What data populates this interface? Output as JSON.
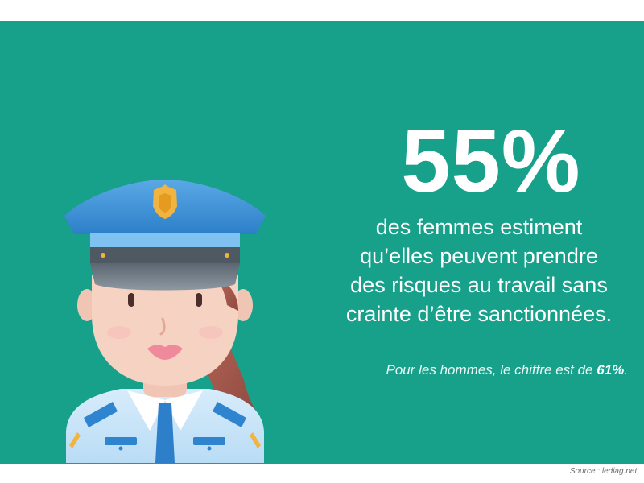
{
  "stat": {
    "value": "55%",
    "description_lines": [
      "des femmes estiment",
      "qu’elles peuvent prendre",
      "des risques au travail sans",
      "crainte d’être sanctionnées."
    ]
  },
  "note": {
    "prefix": "Pour les hommes, le chiffre est de ",
    "value": "61%",
    "suffix": "."
  },
  "footer": {
    "source": "Source : lediag.net,"
  },
  "colors": {
    "background": "#17a08a",
    "text": "#ffffff"
  },
  "illustration": {
    "icon": "policewoman-icon"
  }
}
